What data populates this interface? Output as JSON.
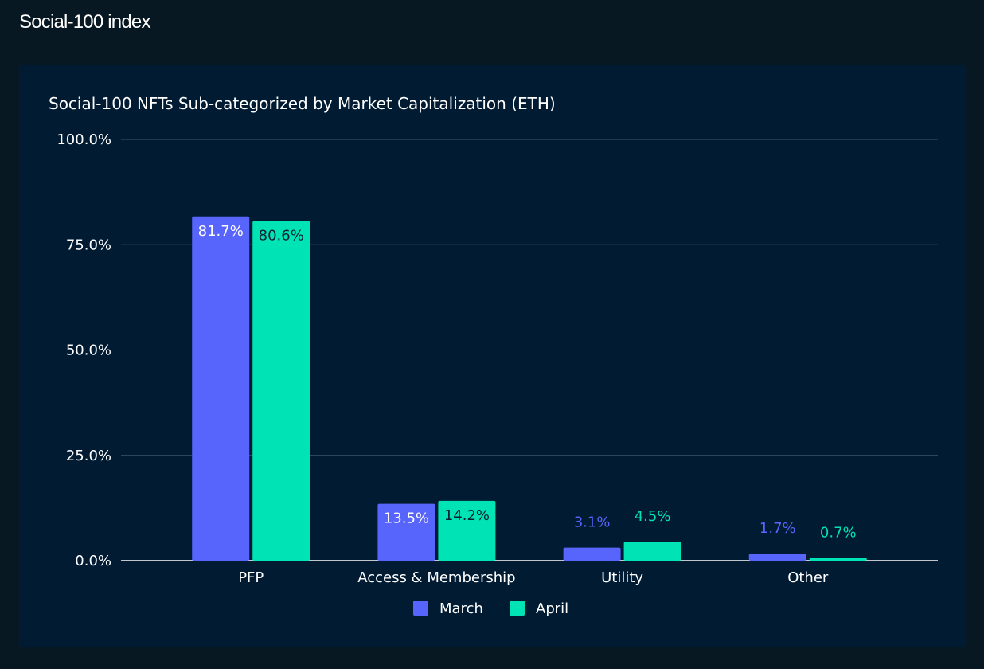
{
  "header": {
    "title": "Social-100 index"
  },
  "colors": {
    "background": "#081822",
    "panel": "#011b33",
    "grid": "#3d5566",
    "march": "#5865fc",
    "april": "#00e3b4"
  },
  "chart_data": {
    "type": "bar",
    "title": "Social-100 NFTs Sub-categorized by Market Capitalization (ETH)",
    "xlabel": "",
    "ylabel": "",
    "ylim": [
      0,
      100
    ],
    "yticks": [
      "0.0%",
      "25.0%",
      "50.0%",
      "75.0%",
      "100.0%"
    ],
    "ytick_values": [
      0,
      25,
      50,
      75,
      100
    ],
    "categories": [
      "PFP",
      "Access & Membership",
      "Utility",
      "Other"
    ],
    "series": [
      {
        "name": "March",
        "color": "#5865fc",
        "values": [
          81.7,
          13.5,
          3.1,
          1.7
        ],
        "labels": [
          "81.7%",
          "13.5%",
          "3.1%",
          "1.7%"
        ]
      },
      {
        "name": "April",
        "color": "#00e3b4",
        "values": [
          80.6,
          14.2,
          4.5,
          0.7
        ],
        "labels": [
          "80.6%",
          "14.2%",
          "4.5%",
          "0.7%"
        ]
      }
    ],
    "grid": true,
    "legend_position": "bottom-center"
  }
}
